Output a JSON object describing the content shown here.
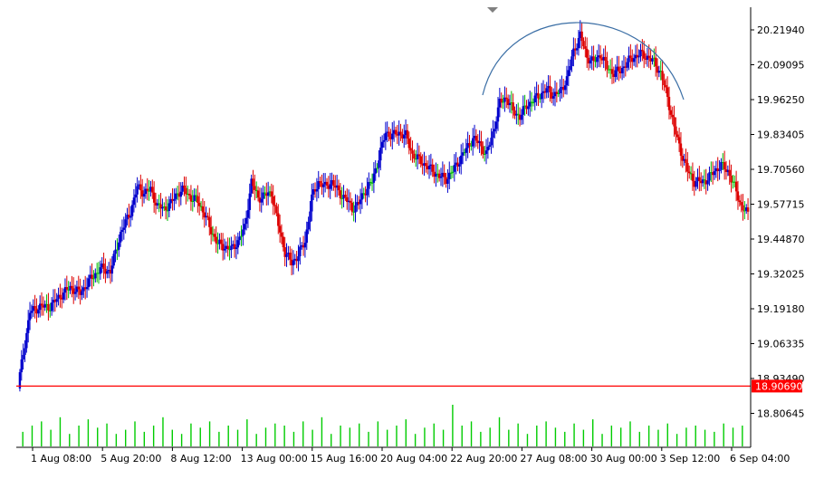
{
  "chart_data": {
    "type": "candlestick",
    "title": "",
    "y_ticks": [
      "20.21940",
      "20.09095",
      "19.96250",
      "19.83405",
      "19.70560",
      "19.57715",
      "19.44870",
      "19.32025",
      "19.19180",
      "19.06335",
      "18.93490",
      "18.80645"
    ],
    "x_ticks": [
      "1 Aug 08:00",
      "5 Aug 20:00",
      "8 Aug 12:00",
      "13 Aug 00:00",
      "15 Aug 16:00",
      "20 Aug 04:00",
      "22 Aug 20:00",
      "27 Aug 08:00",
      "30 Aug 00:00",
      "3 Sep 12:00",
      "6 Sep 04:00"
    ],
    "price_line": {
      "value": 18.9069,
      "label": "18.90690",
      "color": "#ff0000"
    },
    "colors": {
      "bull": "#0000cc",
      "bear": "#dd0000",
      "doji": "#00bb00",
      "volume": "#00cc00",
      "arc": "#3a6ea5",
      "axis": "#000000"
    },
    "annotation": "rounded-top arc",
    "close_path": [
      [
        0,
        18.95
      ],
      [
        6,
        19.18
      ],
      [
        12,
        19.2
      ],
      [
        18,
        19.2
      ],
      [
        24,
        19.24
      ],
      [
        30,
        19.27
      ],
      [
        36,
        19.25
      ],
      [
        42,
        19.3
      ],
      [
        48,
        19.34
      ],
      [
        54,
        19.33
      ],
      [
        60,
        19.47
      ],
      [
        66,
        19.55
      ],
      [
        70,
        19.64
      ],
      [
        74,
        19.62
      ],
      [
        78,
        19.63
      ],
      [
        82,
        19.57
      ],
      [
        86,
        19.56
      ],
      [
        90,
        19.58
      ],
      [
        94,
        19.62
      ],
      [
        98,
        19.63
      ],
      [
        102,
        19.6
      ],
      [
        106,
        19.59
      ],
      [
        110,
        19.54
      ],
      [
        114,
        19.48
      ],
      [
        118,
        19.43
      ],
      [
        122,
        19.42
      ],
      [
        126,
        19.41
      ],
      [
        130,
        19.44
      ],
      [
        134,
        19.49
      ],
      [
        138,
        19.66
      ],
      [
        142,
        19.6
      ],
      [
        146,
        19.61
      ],
      [
        150,
        19.62
      ],
      [
        154,
        19.5
      ],
      [
        158,
        19.4
      ],
      [
        162,
        19.36
      ],
      [
        166,
        19.39
      ],
      [
        170,
        19.44
      ],
      [
        174,
        19.6
      ],
      [
        178,
        19.66
      ],
      [
        182,
        19.64
      ],
      [
        186,
        19.66
      ],
      [
        190,
        19.62
      ],
      [
        194,
        19.6
      ],
      [
        198,
        19.56
      ],
      [
        202,
        19.58
      ],
      [
        206,
        19.63
      ],
      [
        210,
        19.66
      ],
      [
        214,
        19.75
      ],
      [
        218,
        19.84
      ],
      [
        222,
        19.83
      ],
      [
        226,
        19.84
      ],
      [
        230,
        19.83
      ],
      [
        234,
        19.76
      ],
      [
        238,
        19.74
      ],
      [
        242,
        19.72
      ],
      [
        246,
        19.7
      ],
      [
        250,
        19.68
      ],
      [
        254,
        19.67
      ],
      [
        258,
        19.7
      ],
      [
        262,
        19.74
      ],
      [
        266,
        19.78
      ],
      [
        270,
        19.82
      ],
      [
        274,
        19.8
      ],
      [
        278,
        19.76
      ],
      [
        282,
        19.84
      ],
      [
        286,
        19.95
      ],
      [
        290,
        19.97
      ],
      [
        294,
        19.92
      ],
      [
        298,
        19.9
      ],
      [
        302,
        19.94
      ],
      [
        306,
        19.96
      ],
      [
        310,
        19.98
      ],
      [
        314,
        20.0
      ],
      [
        318,
        19.98
      ],
      [
        322,
        19.99
      ],
      [
        326,
        20.04
      ],
      [
        330,
        20.14
      ],
      [
        334,
        20.2
      ],
      [
        338,
        20.12
      ],
      [
        342,
        20.1
      ],
      [
        346,
        20.13
      ],
      [
        350,
        20.08
      ],
      [
        354,
        20.06
      ],
      [
        358,
        20.07
      ],
      [
        362,
        20.1
      ],
      [
        366,
        20.12
      ],
      [
        370,
        20.13
      ],
      [
        374,
        20.12
      ],
      [
        378,
        20.1
      ],
      [
        382,
        20.06
      ],
      [
        386,
        19.97
      ],
      [
        390,
        19.86
      ],
      [
        394,
        19.77
      ],
      [
        398,
        19.7
      ],
      [
        402,
        19.66
      ],
      [
        406,
        19.66
      ],
      [
        410,
        19.67
      ],
      [
        414,
        19.7
      ],
      [
        418,
        19.72
      ],
      [
        422,
        19.7
      ],
      [
        426,
        19.64
      ],
      [
        430,
        19.57
      ],
      [
        434,
        19.54
      ]
    ],
    "volume_levels": [
      0.35,
      0.5,
      0.6,
      0.4,
      0.7,
      0.3,
      0.5,
      0.65,
      0.45,
      0.55,
      0.3,
      0.4,
      0.6,
      0.35,
      0.5,
      0.7,
      0.4,
      0.3,
      0.55,
      0.45,
      0.6,
      0.35,
      0.5,
      0.4,
      0.65,
      0.3,
      0.45,
      0.55,
      0.5,
      0.35,
      0.6,
      0.4,
      0.7,
      0.3,
      0.5,
      0.45,
      0.55,
      0.35,
      0.6,
      0.4,
      0.5,
      0.65,
      0.3,
      0.45,
      0.55,
      0.4,
      1.0,
      0.5,
      0.6,
      0.35,
      0.45,
      0.7,
      0.4,
      0.55,
      0.3,
      0.5,
      0.6,
      0.45,
      0.35,
      0.55,
      0.4,
      0.65,
      0.3,
      0.5,
      0.45,
      0.6,
      0.35,
      0.5,
      0.4,
      0.55,
      0.3,
      0.45,
      0.5,
      0.4,
      0.35,
      0.55,
      0.45,
      0.5
    ]
  }
}
